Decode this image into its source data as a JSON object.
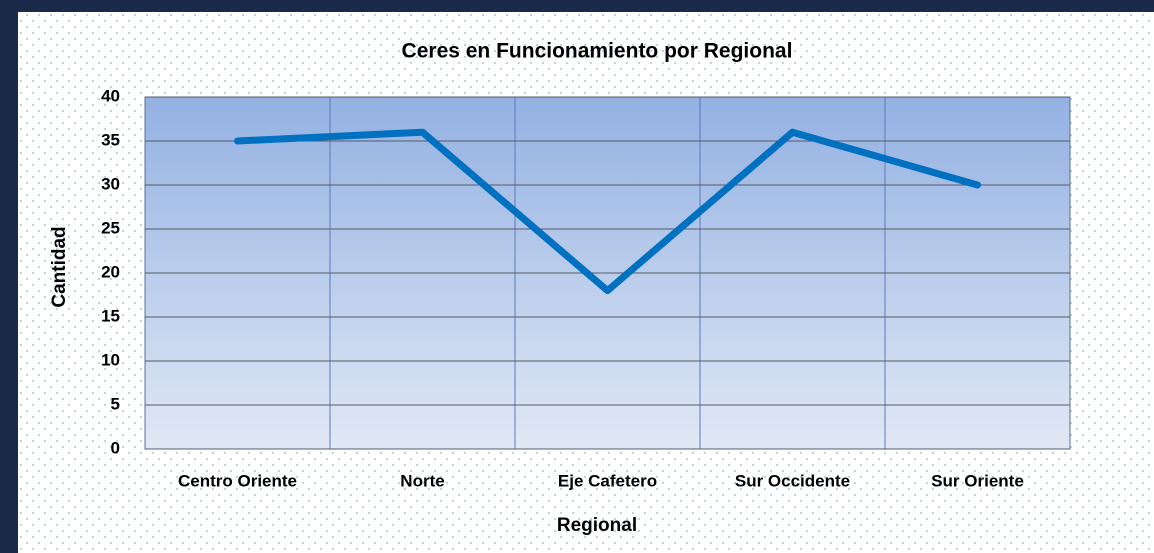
{
  "chart_data": {
    "type": "line",
    "title": "Ceres en Funcionamiento por Regional",
    "x_label": "Regional",
    "y_label": "Cantidad",
    "categories": [
      "Centro Oriente",
      "Norte",
      "Eje Cafetero",
      "Sur Occidente",
      "Sur Oriente"
    ],
    "series": [
      {
        "name": "Cantidad",
        "color": "#0070c0",
        "values": [
          35,
          36,
          18,
          36,
          30
        ]
      }
    ],
    "ylim": [
      0,
      40
    ],
    "yticks": [
      0,
      5,
      10,
      15,
      20,
      25,
      30,
      35,
      40
    ],
    "grid": true
  }
}
